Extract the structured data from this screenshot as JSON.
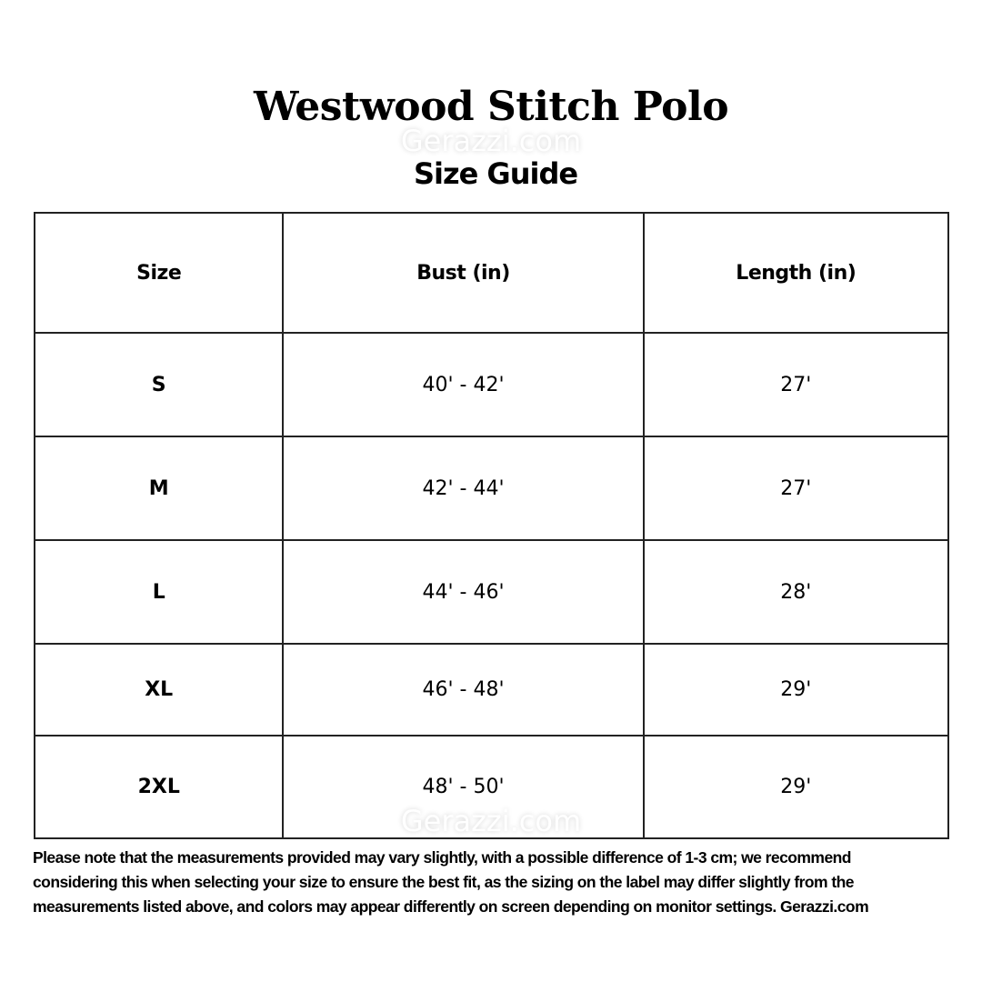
{
  "header": {
    "title": "Westwood Stitch Polo",
    "subtitle": "Size Guide",
    "watermark": "Gerazzi.com"
  },
  "table": {
    "columns": [
      "Size",
      "Bust (in)",
      "Length (in)"
    ],
    "rows": [
      {
        "size": "S",
        "bust": "40' - 42'",
        "length": "27'"
      },
      {
        "size": "M",
        "bust": "42' - 44'",
        "length": "27'"
      },
      {
        "size": "L",
        "bust": "44' - 46'",
        "length": "28'"
      },
      {
        "size": "XL",
        "bust": "46' - 48'",
        "length": "29'"
      },
      {
        "size": "2XL",
        "bust": "48' - 50'",
        "length": "29'"
      }
    ]
  },
  "note": {
    "lines": [
      "Please note that the measurements provided may vary slightly, with a possible difference of 1-3 cm; we recommend",
      "considering this when selecting your size to ensure the best fit, as the sizing on the label may differ slightly from the",
      "measurements listed above, and colors may appear differently on screen depending on monitor settings. Gerazzi.com"
    ]
  }
}
